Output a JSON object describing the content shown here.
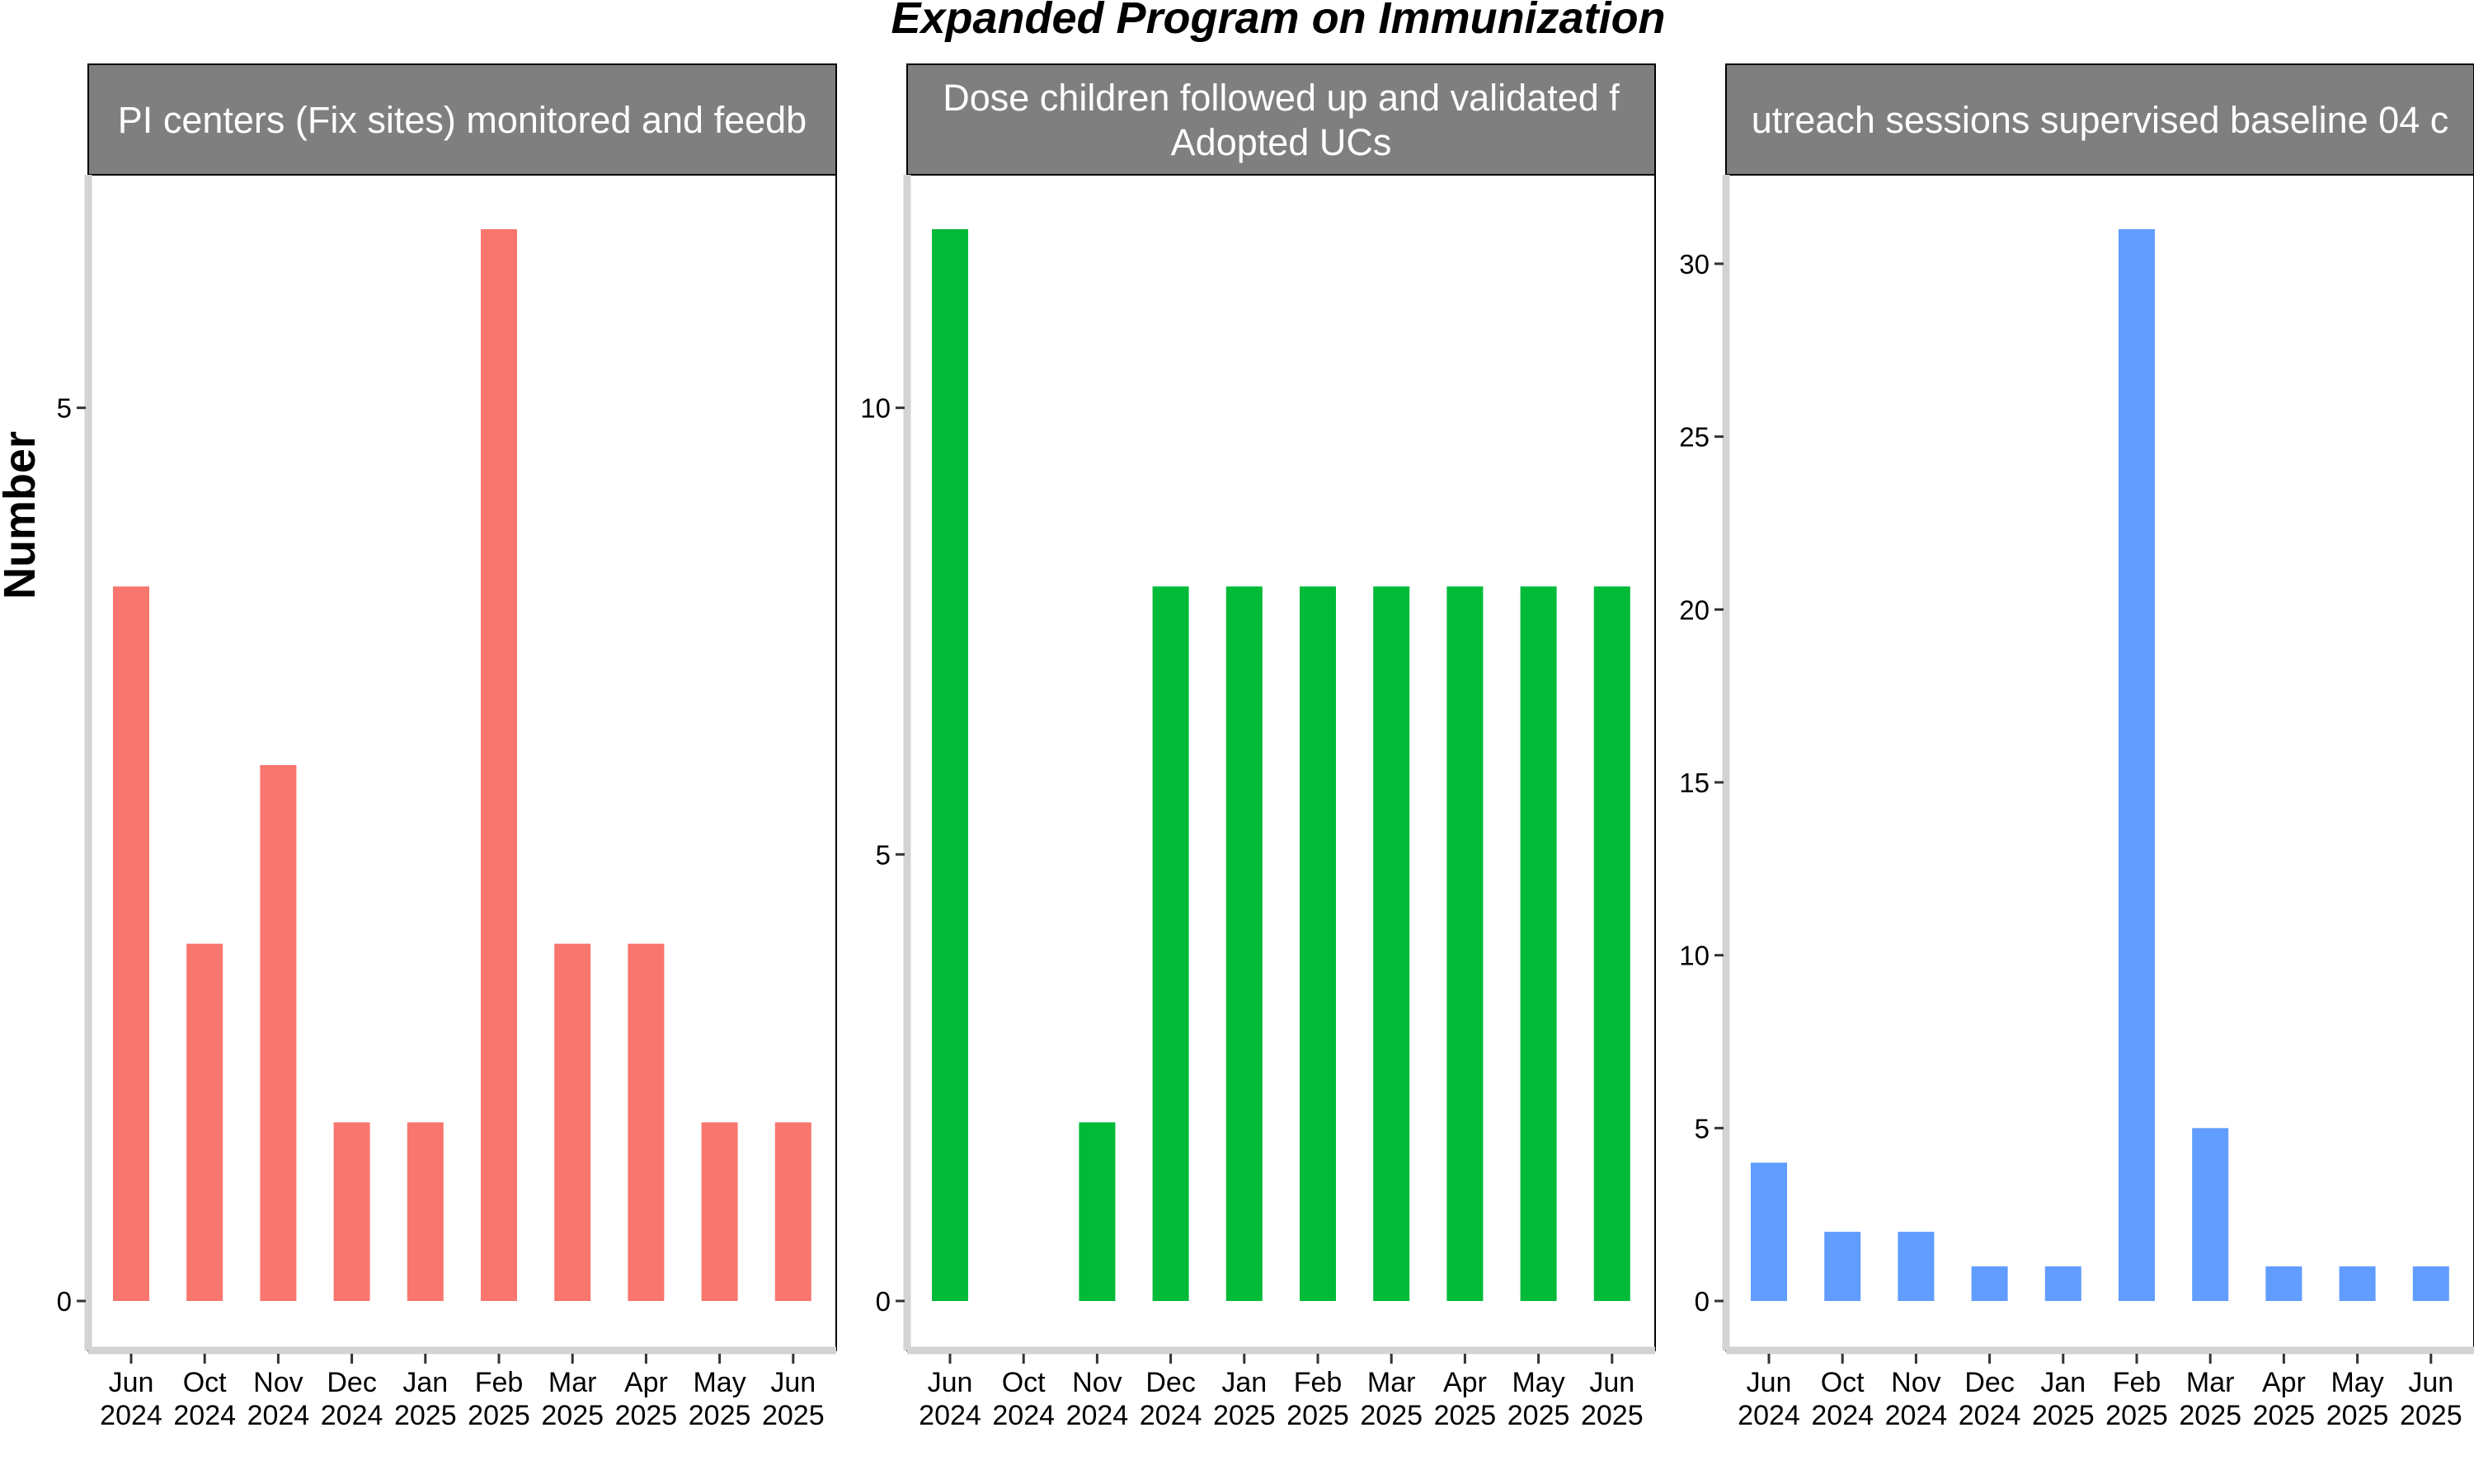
{
  "title": "Expanded Program on Immunization",
  "ylabel": "Number",
  "chart_data": [
    {
      "type": "bar",
      "title": "PI centers (Fix sites) monitored and feedb",
      "title_lines": [
        "PI centers (Fix sites) monitored and feedb"
      ],
      "color": "#F8766D",
      "categories": [
        "Jun 2024",
        "Oct 2024",
        "Nov 2024",
        "Dec 2024",
        "Jan 2025",
        "Feb 2025",
        "Mar 2025",
        "Apr 2025",
        "May 2025",
        "Jun 2025"
      ],
      "category_lines": [
        [
          "Jun",
          "2024"
        ],
        [
          "Oct",
          "2024"
        ],
        [
          "Nov",
          "2024"
        ],
        [
          "Dec",
          "2024"
        ],
        [
          "Jan",
          "2025"
        ],
        [
          "Feb",
          "2025"
        ],
        [
          "Mar",
          "2025"
        ],
        [
          "Apr",
          "2025"
        ],
        [
          "May",
          "2025"
        ],
        [
          "Jun",
          "2025"
        ]
      ],
      "values": [
        4,
        2,
        3,
        1,
        1,
        6,
        2,
        2,
        1,
        1
      ],
      "yticks": [
        0,
        5
      ],
      "ylim": [
        -0.25,
        6.3
      ]
    },
    {
      "type": "bar",
      "title": "Dose children followed up and validated f Adopted UCs",
      "title_lines": [
        "Dose children followed up and validated f",
        "Adopted UCs"
      ],
      "color": "#00BA38",
      "categories": [
        "Jun 2024",
        "Oct 2024",
        "Nov 2024",
        "Dec 2024",
        "Jan 2025",
        "Feb 2025",
        "Mar 2025",
        "Apr 2025",
        "May 2025",
        "Jun 2025"
      ],
      "category_lines": [
        [
          "Jun",
          "2024"
        ],
        [
          "Oct",
          "2024"
        ],
        [
          "Nov",
          "2024"
        ],
        [
          "Dec",
          "2024"
        ],
        [
          "Jan",
          "2025"
        ],
        [
          "Feb",
          "2025"
        ],
        [
          "Mar",
          "2025"
        ],
        [
          "Apr",
          "2025"
        ],
        [
          "May",
          "2025"
        ],
        [
          "Jun",
          "2025"
        ]
      ],
      "values": [
        12,
        0,
        2,
        8,
        8,
        8,
        8,
        8,
        8,
        8
      ],
      "yticks": [
        0,
        5,
        10
      ],
      "ylim": [
        -0.5,
        12.6
      ]
    },
    {
      "type": "bar",
      "title": "utreach sessions supervised baseline 04 c",
      "title_lines": [
        "utreach sessions supervised baseline 04 c"
      ],
      "color": "#619CFF",
      "categories": [
        "Jun 2024",
        "Oct 2024",
        "Nov 2024",
        "Dec 2024",
        "Jan 2025",
        "Feb 2025",
        "Mar 2025",
        "Apr 2025",
        "May 2025",
        "Jun 2025"
      ],
      "category_lines": [
        [
          "Jun",
          "2024"
        ],
        [
          "Oct",
          "2024"
        ],
        [
          "Nov",
          "2024"
        ],
        [
          "Dec",
          "2024"
        ],
        [
          "Jan",
          "2025"
        ],
        [
          "Feb",
          "2025"
        ],
        [
          "Mar",
          "2025"
        ],
        [
          "Apr",
          "2025"
        ],
        [
          "May",
          "2025"
        ],
        [
          "Jun",
          "2025"
        ]
      ],
      "values": [
        4,
        2,
        2,
        1,
        1,
        31,
        5,
        1,
        1,
        1
      ],
      "yticks": [
        0,
        5,
        10,
        15,
        20,
        25,
        30
      ],
      "ylim": [
        -1.5,
        32.6
      ]
    }
  ]
}
